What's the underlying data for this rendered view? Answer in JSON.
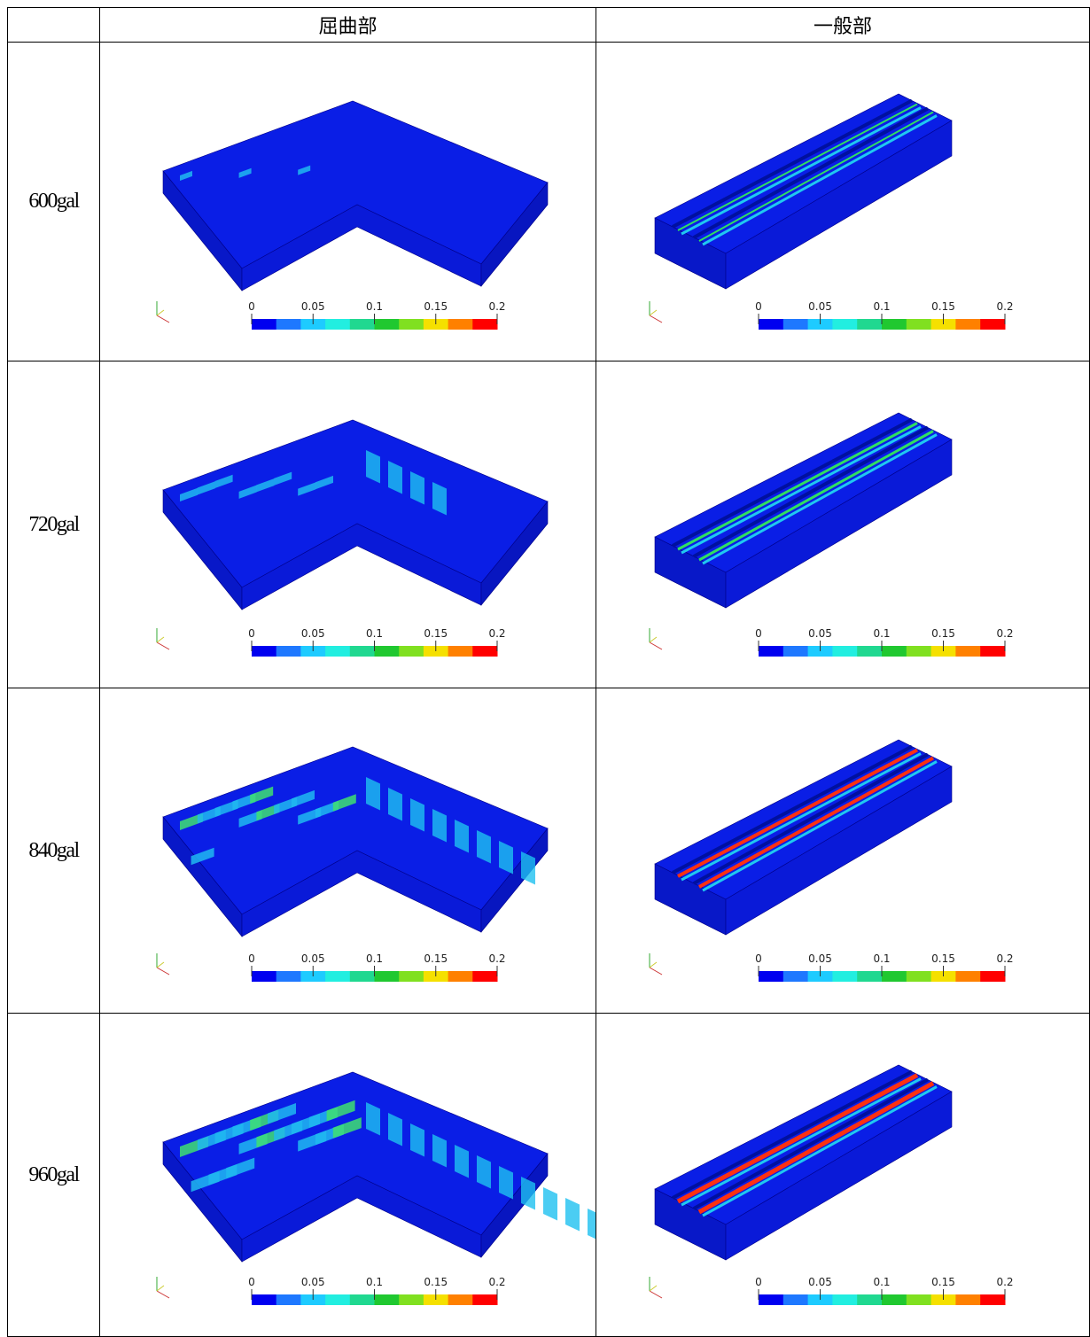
{
  "columns": [
    "屈曲部",
    "一般部"
  ],
  "rows": [
    {
      "label": "600gal"
    },
    {
      "label": "720gal"
    },
    {
      "label": "840gal"
    },
    {
      "label": "960gal"
    }
  ],
  "colorbar": {
    "ticks": [
      "0",
      "0.05",
      "0.1",
      "0.15",
      "0.2"
    ],
    "colors": [
      "#0000f0",
      "#1e78ff",
      "#1ecbff",
      "#22eee0",
      "#20d890",
      "#20c830",
      "#80e020",
      "#f5e000",
      "#ff8000",
      "#ff0000"
    ]
  }
}
